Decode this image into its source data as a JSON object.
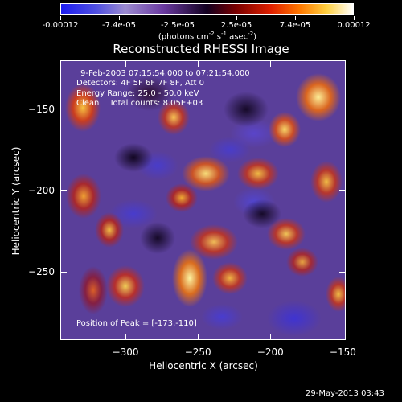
{
  "colorbar": {
    "tick_labels": [
      "-0.00012",
      "-7.4e-05",
      "-2.5e-05",
      "2.5e-05",
      "7.4e-05",
      "0.00012"
    ],
    "units_prefix": "(photons cm",
    "units_exp1": "-2",
    "units_mid1": " s",
    "units_exp2": "-1",
    "units_mid2": " asec",
    "units_exp3": "-2",
    "units_suffix": ")",
    "colors": [
      "#1c1cf0",
      "#9b8ad0",
      "#120020",
      "#e02000",
      "#ff7a00",
      "#ffffff"
    ]
  },
  "chart_data": {
    "type": "heatmap",
    "title": "Reconstructed RHESSI Image",
    "xlabel": "Heliocentric X (arcsec)",
    "ylabel": "Heliocentric Y (arcsec)",
    "xlim": [
      -345,
      -148
    ],
    "ylim": [
      -292,
      -120
    ],
    "x_ticks": [
      -300,
      -250,
      -200,
      -150
    ],
    "y_ticks": [
      -150,
      -200,
      -250
    ],
    "annotation_lines": [
      "9-Feb-2003 07:15:54.000 to 07:21:54.000",
      "Detectors: 4F 5F 6F 7F 8F, Att 0",
      "Energy Range: 25.0 - 50.0 keV",
      "Clean    Total counts: 8.05E+03"
    ],
    "peak_label": "Position of Peak = [-173,-110]",
    "colormap_range": [
      -0.00012,
      0.00012
    ]
  },
  "footer": {
    "timestamp": "29-May-2013 03:43"
  }
}
